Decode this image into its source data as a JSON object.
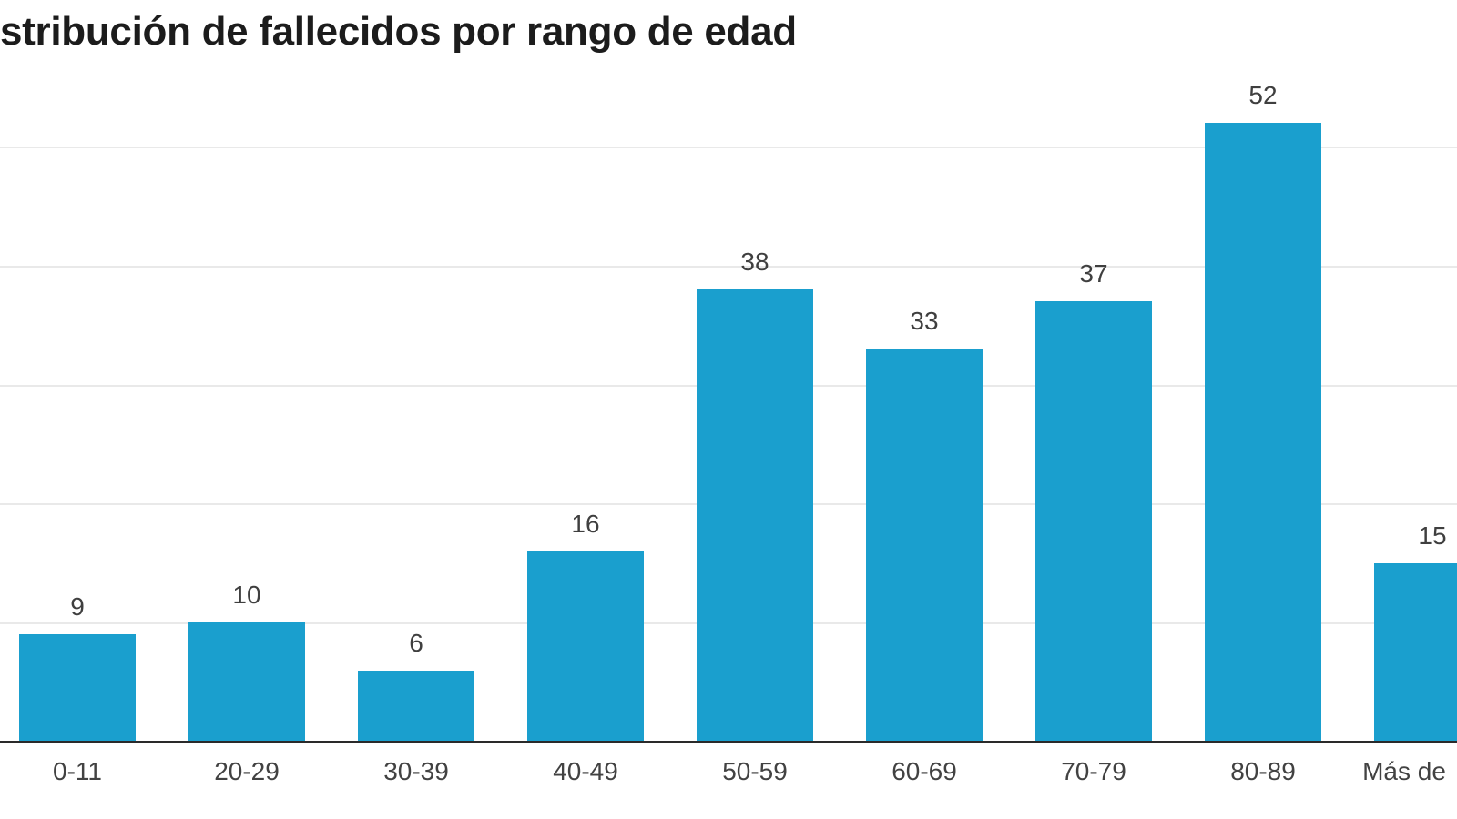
{
  "page": {
    "background": "#ffffff"
  },
  "chart_data": {
    "type": "bar",
    "title": "stribución de fallecidos por rango de edad",
    "categories": [
      "0-11",
      "20-29",
      "30-39",
      "40-49",
      "50-59",
      "60-69",
      "70-79",
      "80-89",
      "Más de"
    ],
    "values": [
      9,
      10,
      6,
      16,
      38,
      33,
      37,
      52,
      15
    ],
    "value_labels_shown": true,
    "xlabel": "",
    "ylabel": "",
    "ylim": [
      0,
      55
    ],
    "gridlines": [
      10,
      20,
      30,
      40,
      50
    ],
    "grid": true,
    "legend": "none",
    "bar_color": "#1a9fce",
    "notes": "chart cropped at left and right edges; last bar and last category label partially cut off"
  },
  "colors": {
    "bar": "#1a9fce",
    "gridline": "#e9e9e9",
    "axis_line": "#2a2a2a",
    "title_text": "#1c1c1c",
    "value_label_text": "#3f3f3f",
    "tick_label_text": "#424242",
    "background": "#ffffff"
  }
}
